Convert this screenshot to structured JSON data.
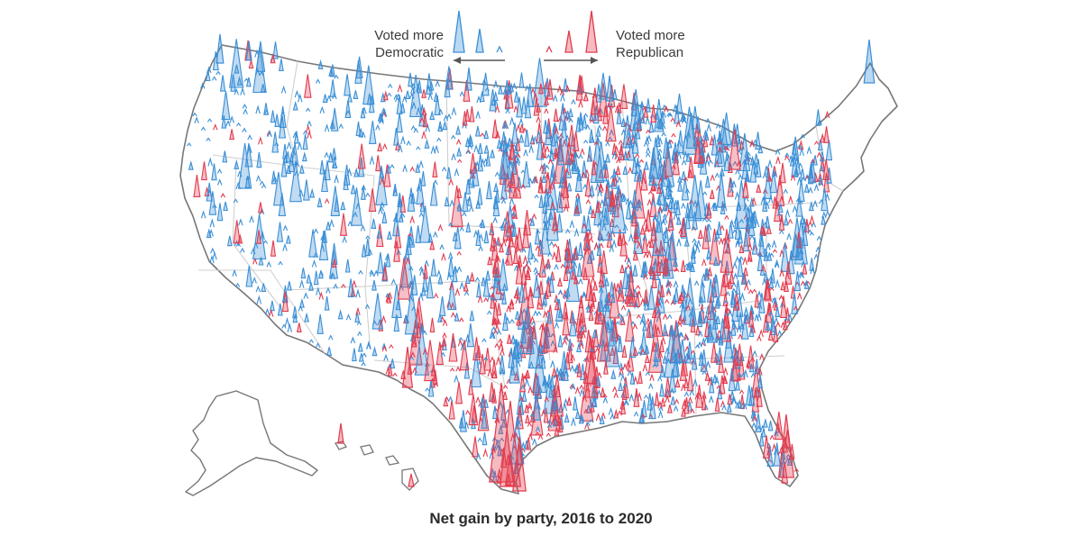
{
  "legend": {
    "dem_line1": "Voted more",
    "dem_line2": "Democratic",
    "rep_line1": "Voted more",
    "rep_line2": "Republican"
  },
  "caption": "Net gain by party, 2016 to 2020",
  "colors": {
    "democratic": "#3a8fd6",
    "republican": "#e23b4e",
    "state_border": "#cfcfcf",
    "nation_border": "#777777",
    "arrow": "#555555"
  }
}
